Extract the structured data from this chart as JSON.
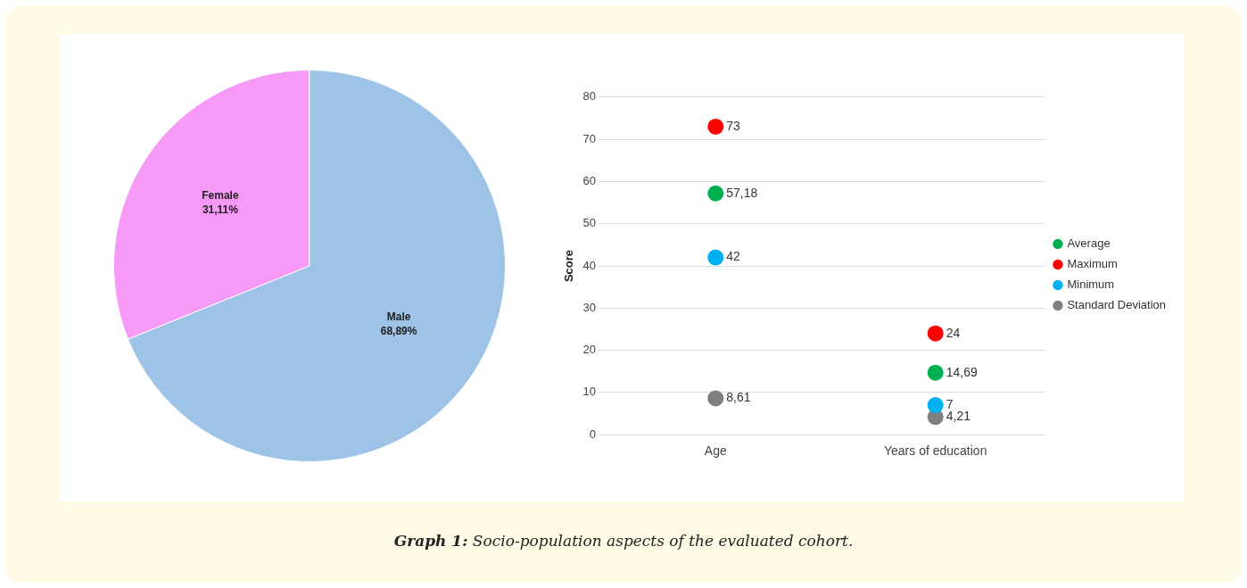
{
  "chart_data": [
    {
      "type": "pie",
      "categories": [
        "Female",
        "Male"
      ],
      "values": [
        31.11,
        68.89
      ],
      "colors": [
        "#f799f7",
        "#9dc3e6"
      ],
      "value_labels": [
        "31,11%",
        "68,89%"
      ],
      "legend": false,
      "annotations": [
        "Graph 1:  Socio-population aspects of the evaluated cohort."
      ]
    },
    {
      "type": "scatter",
      "categories": [
        "Age",
        "Years of education"
      ],
      "ylabel": "Score",
      "ylim": [
        0,
        80
      ],
      "yticks": [
        0,
        10,
        20,
        30,
        40,
        50,
        60,
        70,
        80
      ],
      "grid": "y",
      "legend": "right",
      "marker": "circle",
      "series": [
        {
          "name": "Average",
          "color": "#00b050",
          "values": [
            57.18,
            14.69
          ],
          "value_labels": [
            "57,18",
            "14,69"
          ]
        },
        {
          "name": "Maximum",
          "color": "#ff0000",
          "values": [
            73,
            24
          ],
          "value_labels": [
            "73",
            "24"
          ]
        },
        {
          "name": "Minimum",
          "color": "#00b0f0",
          "values": [
            42,
            7
          ],
          "value_labels": [
            "42",
            "7"
          ]
        },
        {
          "name": "Standard Deviation",
          "color": "#7f7f7f",
          "values": [
            8.61,
            4.21
          ],
          "value_labels": [
            "8,61",
            "4,21"
          ]
        }
      ]
    }
  ]
}
